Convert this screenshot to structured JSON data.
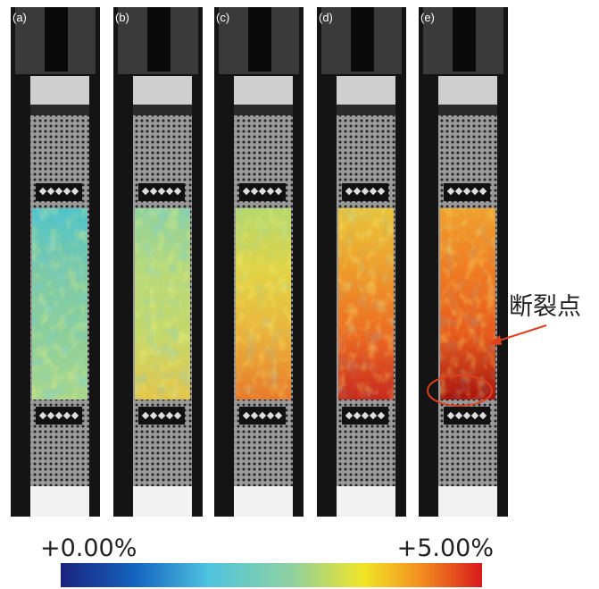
{
  "panels": [
    {
      "label": "(a)"
    },
    {
      "label": "(b)"
    },
    {
      "label": "(c)"
    },
    {
      "label": "(d)"
    },
    {
      "label": "(e)"
    }
  ],
  "annotation": "断裂点",
  "colorbar": {
    "min_label": "+0.00%",
    "max_label": "+5.00%"
  }
}
